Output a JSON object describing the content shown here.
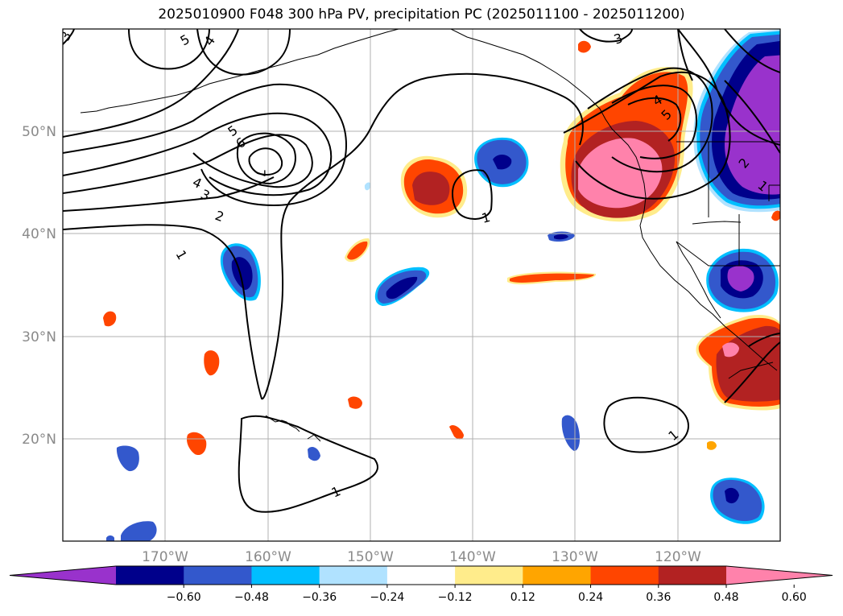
{
  "title": "2025010900 F048 300 hPa PV, precipitation PC (2025011100 - 2025011200)",
  "lon_labels": [
    "170°W",
    "160°W",
    "150°W",
    "140°W",
    "130°W",
    "120°W"
  ],
  "lat_labels": [
    "50°N",
    "40°N",
    "30°N",
    "20°N"
  ],
  "colorbar": {
    "ticks": [
      "−0.60",
      "−0.48",
      "−0.36",
      "−0.24",
      "−0.12",
      "0.12",
      "0.24",
      "0.36",
      "0.48",
      "0.60"
    ],
    "colors": [
      "#9932cc",
      "#00008b",
      "#3358cc",
      "#00bfff",
      "#b0e2ff",
      "#ffffff",
      "#ffec8b",
      "#ffa500",
      "#ff4500",
      "#b22222",
      "#ff82ab"
    ]
  },
  "contour_labels": [
    "1",
    "1",
    "1",
    "1",
    "1",
    "2",
    "2",
    "3",
    "3",
    "3",
    "4",
    "4",
    "4",
    "5",
    "5",
    "5",
    "6",
    "7"
  ]
}
